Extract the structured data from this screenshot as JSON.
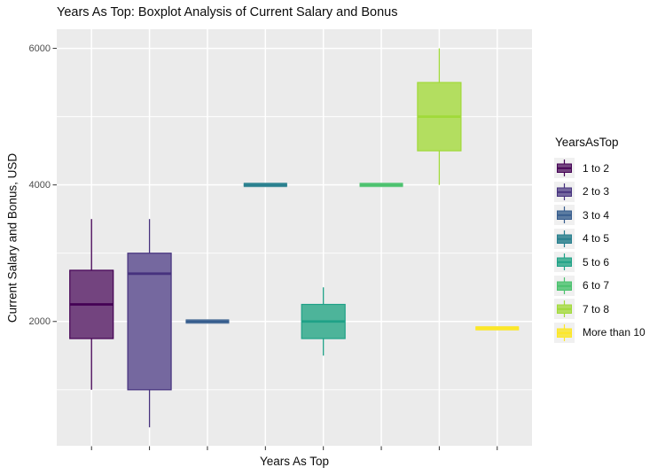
{
  "title": "Years As Top: Boxplot Analysis of Current Salary and Bonus",
  "axes": {
    "x_title": "Years As Top",
    "y_title": "Current Salary and Bonus, USD",
    "y_tick_labels": [
      "2000",
      "4000",
      "6000"
    ]
  },
  "legend": {
    "title": "YearsAsTop",
    "position": "right"
  },
  "colors": {
    "panel_background": "#ebebeb",
    "grid_line": "#ffffff",
    "tick_mark": "#333333",
    "tick_label": "#4d4d4d",
    "legend_key_background": "#f0f0f0"
  },
  "chart_data": {
    "type": "boxplot",
    "title": "Years As Top: Boxplot Analysis of Current Salary and Bonus",
    "xlabel": "Years As Top",
    "ylabel": "Current Salary and Bonus, USD",
    "categories": [
      "1 to 2",
      "2 to 3",
      "3 to 4",
      "4 to 5",
      "5 to 6",
      "6 to 7",
      "7 to 8",
      "More than 10"
    ],
    "ylim": [
      180,
      6280
    ],
    "y_major_ticks": [
      2000,
      4000,
      6000
    ],
    "y_minor_ticks": [
      1000,
      3000,
      5000
    ],
    "grid": true,
    "legend_position": "right",
    "series": [
      {
        "name": "1 to 2",
        "min": 1000,
        "q1": 1750,
        "median": 2250,
        "q3": 2750,
        "max": 3500,
        "stroke": "#440154",
        "fill": "#73447f"
      },
      {
        "name": "2 to 3",
        "min": 450,
        "q1": 1000,
        "median": 2700,
        "q3": 3000,
        "max": 3500,
        "stroke": "#46327e",
        "fill": "#75689f"
      },
      {
        "name": "3 to 4",
        "min": 2000,
        "q1": 2000,
        "median": 2000,
        "q3": 2000,
        "max": 2000,
        "stroke": "#365c8d",
        "fill": "#5b7ba1"
      },
      {
        "name": "4 to 5",
        "min": 4000,
        "q1": 4000,
        "median": 4000,
        "q3": 4000,
        "max": 4000,
        "stroke": "#277f8e",
        "fill": "#47909c"
      },
      {
        "name": "5 to 6",
        "min": 1500,
        "q1": 1750,
        "median": 2000,
        "q3": 2250,
        "max": 2500,
        "stroke": "#1fa187",
        "fill": "#4db49a"
      },
      {
        "name": "6 to 7",
        "min": 4000,
        "q1": 4000,
        "median": 4000,
        "q3": 4000,
        "max": 4000,
        "stroke": "#4ac16d",
        "fill": "#68ca85"
      },
      {
        "name": "7 to 8",
        "min": 4000,
        "q1": 4500,
        "median": 5000,
        "q3": 5500,
        "max": 6000,
        "stroke": "#a0da39",
        "fill": "#b3de60"
      },
      {
        "name": "More than 10",
        "min": 1900,
        "q1": 1900,
        "median": 1900,
        "q3": 1900,
        "max": 1900,
        "stroke": "#fde725",
        "fill": "#f7e74a"
      }
    ]
  }
}
